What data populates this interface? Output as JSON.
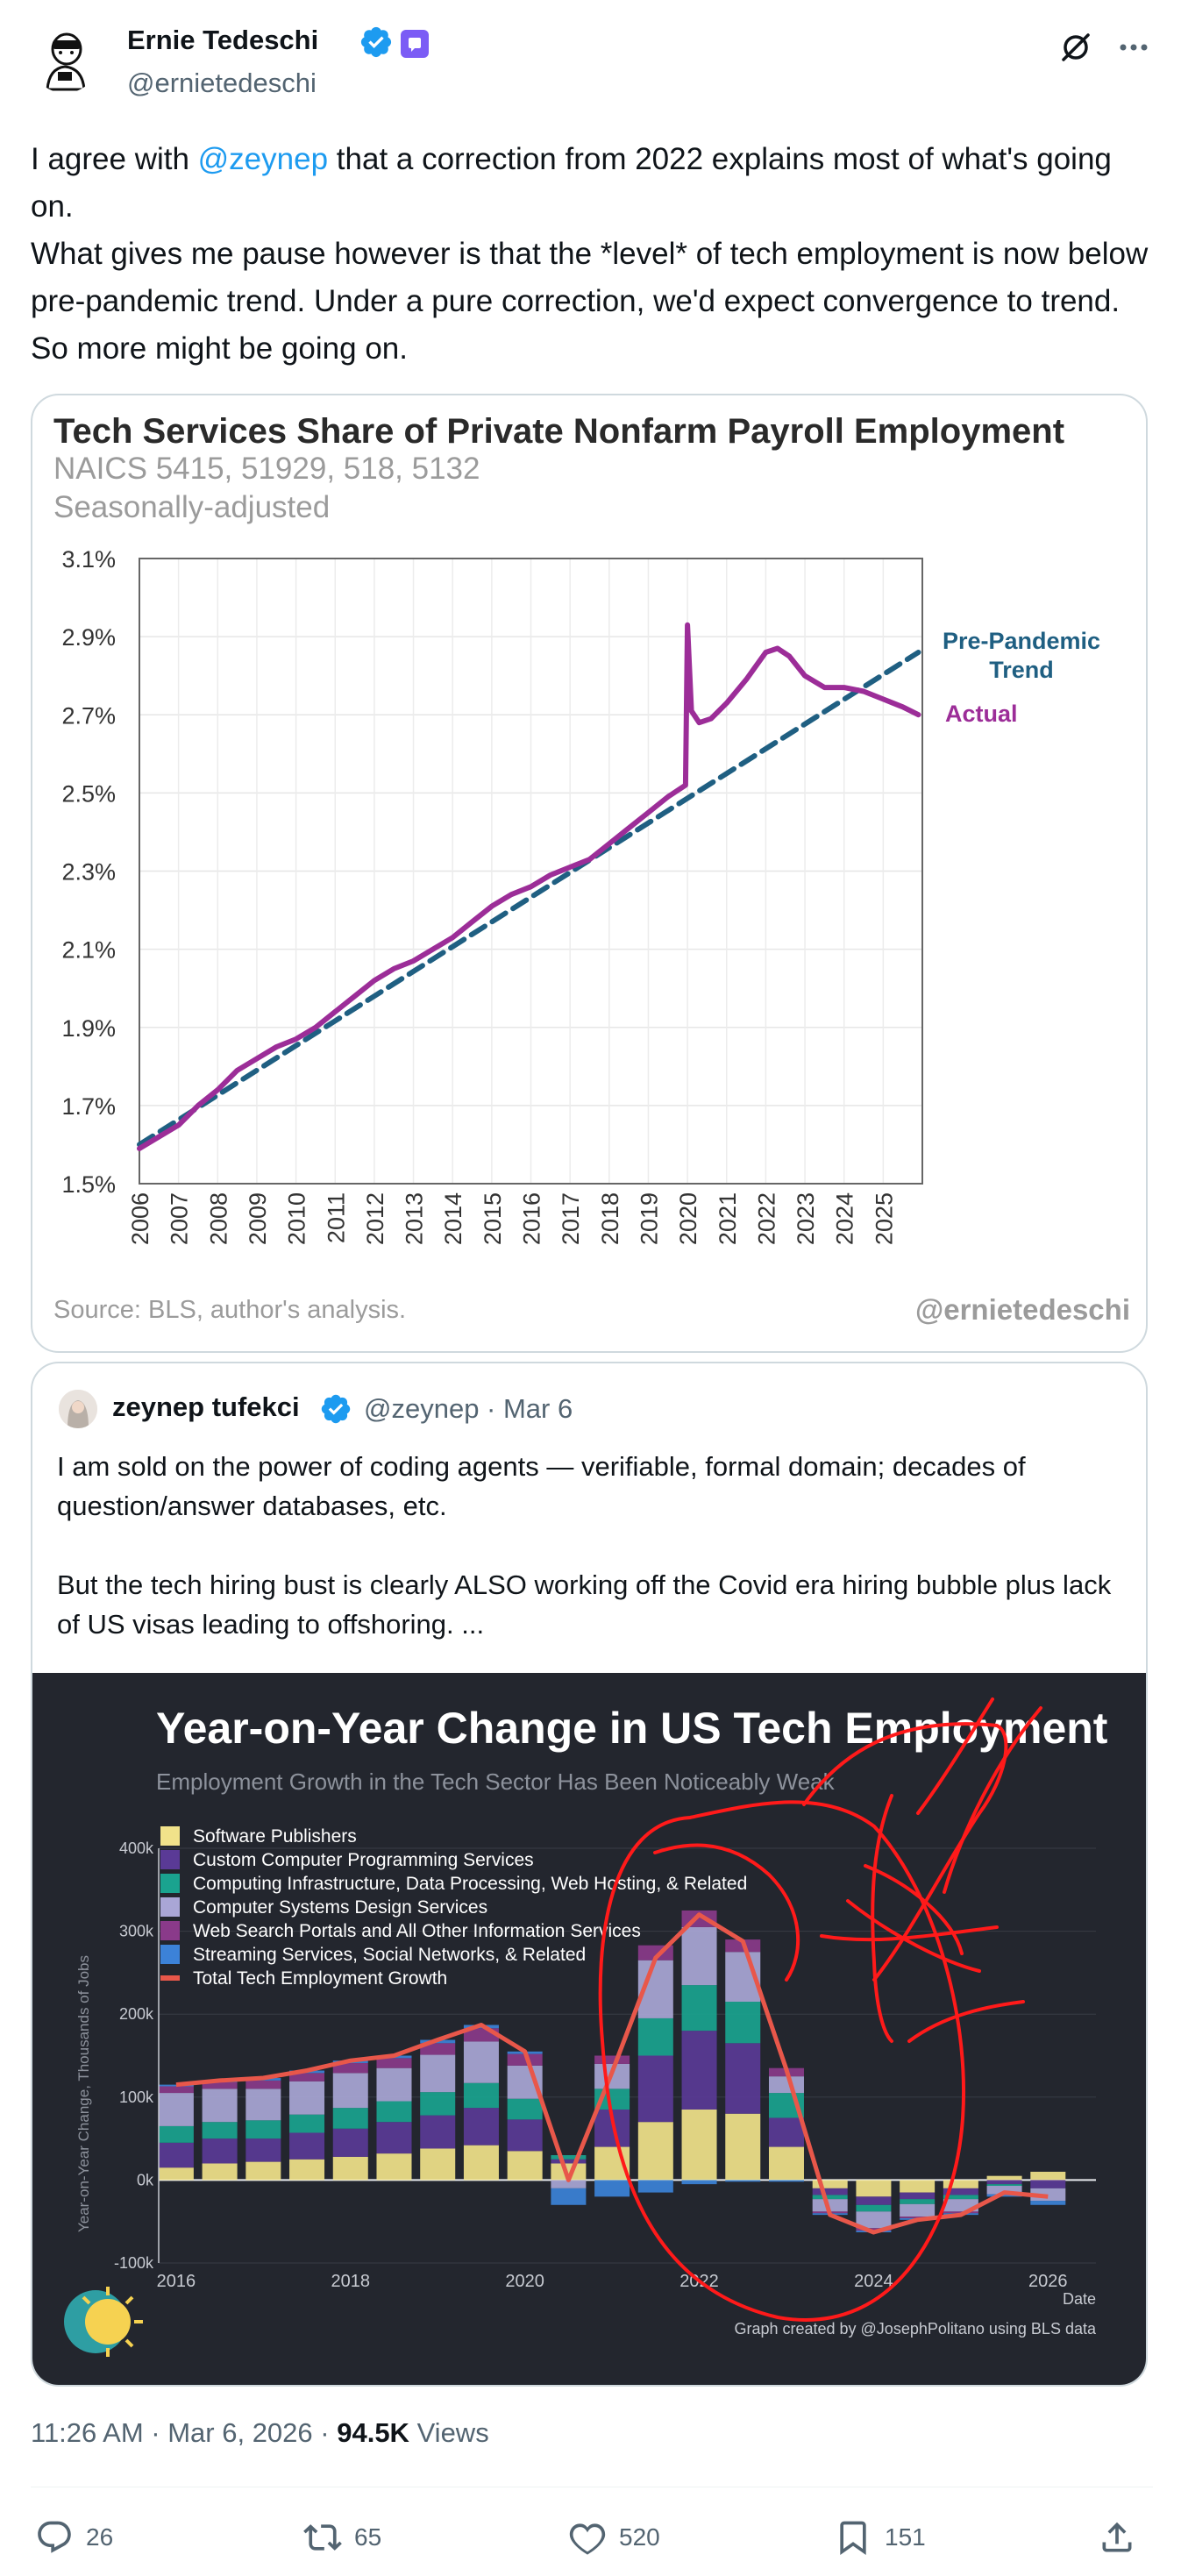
{
  "author": {
    "name": "Ernie Tedeschi",
    "handle": "@ernietedeschi",
    "verified_icon": "verified-badge-icon",
    "badge_color": "#7b5cf5"
  },
  "tweet": {
    "line1_pre": "I agree with ",
    "line1_mention": "@zeynep",
    "line1_post": " that a correction from 2022 explains most of what's going on.",
    "line2": "What gives me pause however is that the *level* of tech employment is now below pre-pandemic trend. Under a pure correction, we'd expect convergence to trend. So more might be going on."
  },
  "chart1": {
    "source": "Source: BLS, author's analysis.",
    "watermark": "@ernietedeschi"
  },
  "quote": {
    "name": "zeynep tufekci",
    "handle_date": "@zeynep · Mar 6",
    "para1": "I am sold on the power of coding agents — verifiable, formal domain; decades of question/answer databases, etc.",
    "para2": "But the tech hiring bust is clearly ALSO working off the Covid era hiring bubble plus lack of US visas leading to offshoring. ..."
  },
  "chart_data": [
    {
      "type": "line",
      "title": "Tech Services Share of Private Nonfarm Payroll Employment",
      "subtitle": "NAICS 5415, 51929, 518, 5132",
      "subtitle2": "Seasonally-adjusted",
      "ylim": [
        1.5,
        3.1
      ],
      "y_ticks": [
        "3.1%",
        "2.9%",
        "2.7%",
        "2.5%",
        "2.3%",
        "2.1%",
        "1.9%",
        "1.7%",
        "1.5%"
      ],
      "x_ticks": [
        "2006",
        "2007",
        "2008",
        "2009",
        "2010",
        "2011",
        "2012",
        "2013",
        "2014",
        "2015",
        "2016",
        "2017",
        "2018",
        "2019",
        "2020",
        "2021",
        "2022",
        "2023",
        "2024",
        "2025"
      ],
      "series": [
        {
          "name": "Pre-Pandemic Trend",
          "label": "Pre-Pandemic\nTrend",
          "color": "#1f5f82",
          "style": "dashed",
          "x": [
            2006.0,
            2025.9
          ],
          "y": [
            1.6,
            2.86
          ]
        },
        {
          "name": "Actual",
          "label": "Actual",
          "color": "#9c2d98",
          "style": "solid",
          "x": [
            2006.0,
            2006.5,
            2007.0,
            2007.5,
            2008.0,
            2008.5,
            2009.0,
            2009.5,
            2010.0,
            2010.5,
            2011.0,
            2011.5,
            2012.0,
            2012.5,
            2013.0,
            2013.5,
            2014.0,
            2014.5,
            2015.0,
            2015.5,
            2016.0,
            2016.5,
            2017.0,
            2017.5,
            2018.0,
            2018.5,
            2019.0,
            2019.5,
            2019.95,
            2020.0,
            2020.1,
            2020.3,
            2020.6,
            2021.0,
            2021.5,
            2022.0,
            2022.3,
            2022.6,
            2023.0,
            2023.5,
            2024.0,
            2024.5,
            2025.0,
            2025.5,
            2025.9
          ],
          "y": [
            1.59,
            1.62,
            1.65,
            1.7,
            1.74,
            1.79,
            1.82,
            1.85,
            1.87,
            1.9,
            1.94,
            1.98,
            2.02,
            2.05,
            2.07,
            2.1,
            2.13,
            2.17,
            2.21,
            2.24,
            2.26,
            2.29,
            2.31,
            2.33,
            2.37,
            2.41,
            2.45,
            2.49,
            2.52,
            2.93,
            2.71,
            2.68,
            2.69,
            2.73,
            2.79,
            2.86,
            2.87,
            2.85,
            2.8,
            2.77,
            2.77,
            2.76,
            2.74,
            2.72,
            2.7
          ]
        }
      ]
    },
    {
      "type": "bar",
      "title": "Year-on-Year Change in US Tech Employment",
      "subtitle": "Employment Growth in the Tech Sector Has Been Noticeably Weak",
      "ylabel": "Year-on-Year Change, Thousands of Jobs",
      "xlabel": "Date",
      "credit": "Graph created by @JosephPolitano using BLS data",
      "ylim": [
        -100,
        400
      ],
      "y_ticks": [
        "400k",
        "300k",
        "200k",
        "100k",
        "0k",
        "-100k"
      ],
      "x_ticks": [
        "2016",
        "2018",
        "2020",
        "2022",
        "2024",
        "2026"
      ],
      "x": [
        2016.0,
        2016.5,
        2017.0,
        2017.5,
        2018.0,
        2018.5,
        2019.0,
        2019.5,
        2020.0,
        2020.5,
        2021.0,
        2021.5,
        2022.0,
        2022.5,
        2023.0,
        2023.5,
        2024.0,
        2024.5,
        2025.0,
        2025.5,
        2026.0
      ],
      "series": [
        {
          "name": "Software Publishers",
          "color": "#f1e28a",
          "values": [
            15,
            20,
            22,
            25,
            28,
            32,
            38,
            42,
            35,
            20,
            40,
            70,
            85,
            80,
            40,
            -10,
            -20,
            -15,
            -10,
            5,
            10
          ]
        },
        {
          "name": "Custom Computer Programming Services",
          "color": "#5a3a96",
          "values": [
            30,
            30,
            28,
            32,
            34,
            38,
            40,
            45,
            38,
            5,
            45,
            80,
            95,
            85,
            35,
            -8,
            -10,
            -8,
            -8,
            -5,
            -10
          ]
        },
        {
          "name": "Computing Infrastructure, Data Processing, Web Hosting, & Related",
          "color": "#1aa38f",
          "values": [
            20,
            20,
            22,
            22,
            25,
            25,
            28,
            30,
            25,
            5,
            25,
            45,
            55,
            50,
            30,
            -5,
            -8,
            -6,
            -5,
            -2,
            0
          ]
        },
        {
          "name": "Computer Systems Design Services",
          "color": "#a9a6d6",
          "values": [
            40,
            40,
            38,
            40,
            42,
            40,
            45,
            50,
            40,
            -10,
            30,
            70,
            70,
            60,
            20,
            -15,
            -20,
            -15,
            -15,
            -10,
            -15
          ]
        },
        {
          "name": "Web Search Portals and All Other Information Services",
          "color": "#8a3a8a",
          "values": [
            8,
            8,
            10,
            10,
            12,
            12,
            14,
            16,
            14,
            0,
            10,
            18,
            20,
            15,
            10,
            -2,
            -3,
            -2,
            -2,
            0,
            0
          ]
        },
        {
          "name": "Streaming Services, Social Networks, & Related",
          "color": "#3c82d8",
          "values": [
            2,
            2,
            3,
            3,
            3,
            3,
            4,
            4,
            3,
            -20,
            -20,
            -15,
            -5,
            -2,
            -2,
            -2,
            -2,
            -2,
            -2,
            -3,
            -5
          ]
        }
      ],
      "total": {
        "name": "Total Tech Employment Growth",
        "color": "#e8574a",
        "values": [
          115,
          120,
          123,
          132,
          144,
          150,
          169,
          187,
          155,
          0,
          130,
          268,
          320,
          288,
          133,
          -42,
          -63,
          -48,
          -42,
          -15,
          -20
        ]
      }
    }
  ],
  "meta": {
    "time": "11:26 AM · Mar 6, 2026 · ",
    "views_count": "94.5K",
    "views_label": " Views"
  },
  "actions": {
    "replies": "26",
    "reposts": "65",
    "likes": "520",
    "bookmarks": "151"
  }
}
